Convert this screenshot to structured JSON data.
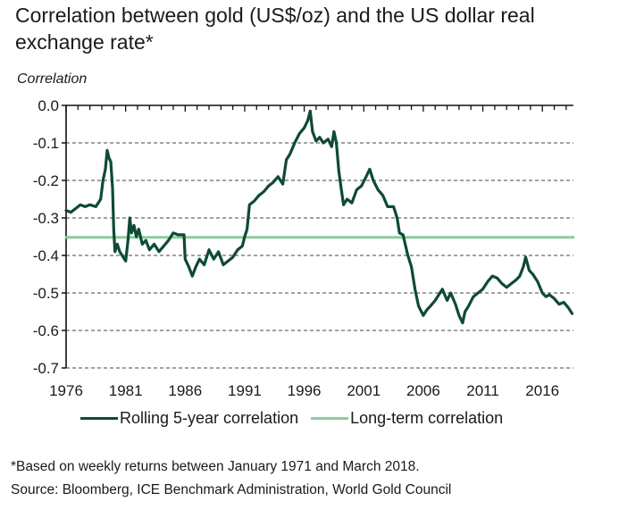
{
  "title": "Correlation between gold (US$/oz) and the US dollar real exchange rate*",
  "chart_data": {
    "type": "line",
    "title": "Correlation between gold (US$/oz) and the US dollar real exchange rate*",
    "xlabel": "",
    "ylabel": "Correlation",
    "xlim": [
      1976,
      2018.6
    ],
    "ylim": [
      -0.7,
      0.0
    ],
    "x_ticks": [
      "1976",
      "1981",
      "1986",
      "1991",
      "1996",
      "2001",
      "2006",
      "2011",
      "2016"
    ],
    "y_ticks": [
      "0.0",
      "-0.1",
      "-0.2",
      "-0.3",
      "-0.4",
      "-0.5",
      "-0.6",
      "-0.7"
    ],
    "grid": "horizontal dashed",
    "legend_position": "bottom",
    "series": [
      {
        "name": "Rolling 5-year correlation",
        "color": "#0f4a36",
        "x": [
          1976.0,
          1976.4,
          1976.8,
          1977.2,
          1977.6,
          1978.0,
          1978.5,
          1978.9,
          1979.1,
          1979.3,
          1979.45,
          1979.6,
          1979.75,
          1979.9,
          1980.0,
          1980.1,
          1980.3,
          1980.5,
          1980.7,
          1981.0,
          1981.2,
          1981.35,
          1981.5,
          1981.7,
          1981.9,
          1982.1,
          1982.4,
          1982.7,
          1983.0,
          1983.4,
          1983.8,
          1984.2,
          1984.6,
          1985.0,
          1985.4,
          1985.9,
          1986.0,
          1986.3,
          1986.6,
          1986.9,
          1987.2,
          1987.6,
          1988.0,
          1988.4,
          1988.8,
          1989.2,
          1989.6,
          1990.0,
          1990.4,
          1990.8,
          1991.0,
          1991.2,
          1991.4,
          1991.8,
          1992.2,
          1992.6,
          1993.0,
          1993.4,
          1993.8,
          1994.2,
          1994.5,
          1994.8,
          1995.2,
          1995.6,
          1996.0,
          1996.3,
          1996.5,
          1996.7,
          1997.0,
          1997.3,
          1997.6,
          1998.0,
          1998.3,
          1998.5,
          1998.7,
          1998.9,
          1999.1,
          1999.3,
          1999.6,
          2000.0,
          2000.4,
          2000.8,
          2001.2,
          2001.5,
          2001.8,
          2002.2,
          2002.6,
          2003.0,
          2003.5,
          2003.8,
          2004.0,
          2004.3,
          2004.7,
          2005.0,
          2005.3,
          2005.6,
          2006.0,
          2006.3,
          2006.6,
          2007.0,
          2007.3,
          2007.6,
          2008.0,
          2008.3,
          2008.7,
          2009.0,
          2009.3,
          2009.5,
          2009.8,
          2010.2,
          2010.6,
          2011.0,
          2011.4,
          2011.8,
          2012.2,
          2012.6,
          2013.0,
          2013.4,
          2013.8,
          2014.1,
          2014.4,
          2014.6,
          2014.9,
          2015.2,
          2015.6,
          2016.0,
          2016.3,
          2016.6,
          2017.0,
          2017.4,
          2017.8,
          2018.2,
          2018.5
        ],
        "values": [
          -0.28,
          -0.285,
          -0.275,
          -0.265,
          -0.27,
          -0.265,
          -0.27,
          -0.25,
          -0.2,
          -0.17,
          -0.12,
          -0.14,
          -0.15,
          -0.22,
          -0.33,
          -0.39,
          -0.37,
          -0.39,
          -0.4,
          -0.415,
          -0.36,
          -0.3,
          -0.34,
          -0.32,
          -0.35,
          -0.33,
          -0.37,
          -0.36,
          -0.385,
          -0.37,
          -0.39,
          -0.375,
          -0.36,
          -0.34,
          -0.345,
          -0.345,
          -0.41,
          -0.43,
          -0.455,
          -0.43,
          -0.41,
          -0.425,
          -0.385,
          -0.41,
          -0.39,
          -0.425,
          -0.415,
          -0.405,
          -0.385,
          -0.375,
          -0.35,
          -0.33,
          -0.265,
          -0.255,
          -0.24,
          -0.23,
          -0.215,
          -0.205,
          -0.19,
          -0.21,
          -0.145,
          -0.13,
          -0.1,
          -0.075,
          -0.06,
          -0.04,
          -0.015,
          -0.07,
          -0.095,
          -0.085,
          -0.1,
          -0.09,
          -0.11,
          -0.07,
          -0.1,
          -0.175,
          -0.22,
          -0.265,
          -0.25,
          -0.26,
          -0.225,
          -0.215,
          -0.19,
          -0.17,
          -0.2,
          -0.225,
          -0.24,
          -0.27,
          -0.27,
          -0.3,
          -0.34,
          -0.345,
          -0.4,
          -0.43,
          -0.49,
          -0.535,
          -0.56,
          -0.545,
          -0.535,
          -0.52,
          -0.505,
          -0.49,
          -0.52,
          -0.5,
          -0.53,
          -0.56,
          -0.58,
          -0.55,
          -0.535,
          -0.51,
          -0.5,
          -0.49,
          -0.47,
          -0.455,
          -0.46,
          -0.475,
          -0.485,
          -0.475,
          -0.465,
          -0.455,
          -0.43,
          -0.405,
          -0.44,
          -0.45,
          -0.47,
          -0.5,
          -0.51,
          -0.505,
          -0.515,
          -0.53,
          -0.525,
          -0.54,
          -0.555
        ]
      },
      {
        "name": "Long-term correlation",
        "color": "#8dcc9e",
        "x": [
          1976.0,
          2018.6
        ],
        "values": [
          -0.352,
          -0.352
        ]
      }
    ]
  },
  "legend": {
    "items": [
      {
        "label": "Rolling 5-year correlation",
        "color": "#0f4a36"
      },
      {
        "label": "Long-term correlation",
        "color": "#8dcc9e"
      }
    ]
  },
  "footnote": {
    "note": "*Based on weekly returns between January 1971 and March 2018.",
    "source": "Source: Bloomberg, ICE Benchmark Administration, World Gold Council"
  }
}
